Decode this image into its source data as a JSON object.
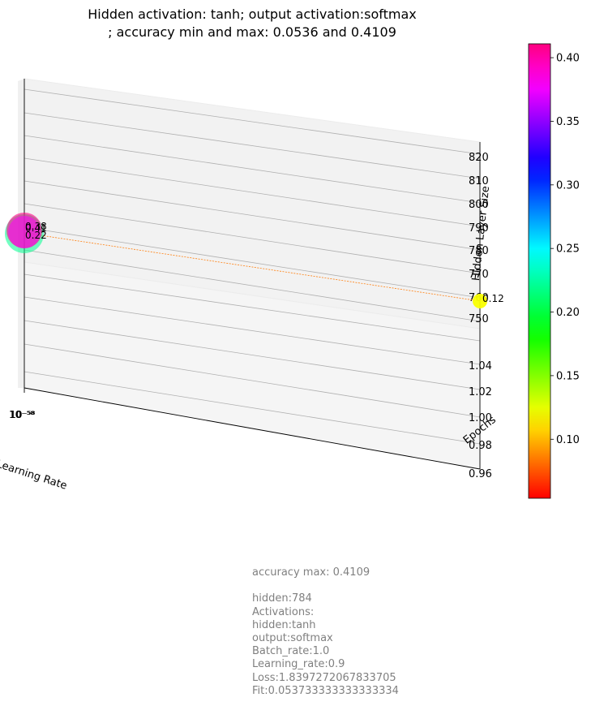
{
  "chart_data": {
    "type": "scatter",
    "title_line1": "Hidden activation: tanh; output activation:softmax",
    "title_line2": "; accuracy min and max: 0.0536 and 0.4109",
    "axes": {
      "x_label": "Learning Rate",
      "y_label": "Hidden Layer Size",
      "z_label": "Epochs",
      "x_tick_label": "10⁻⁵⁸",
      "hidden_ticks": [
        "820",
        "810",
        "800",
        "790",
        "780",
        "770",
        "760",
        "750"
      ],
      "epoch_ticks": [
        "1.04",
        "1.02",
        "1.00",
        "0.98",
        "0.96"
      ]
    },
    "colorbar": {
      "colormap": "gist_rainbow_r",
      "min": 0.0536,
      "max": 0.4109,
      "ticks": [
        "0.40",
        "0.35",
        "0.30",
        "0.25",
        "0.20",
        "0.15",
        "0.10"
      ],
      "tick_values": [
        0.4,
        0.35,
        0.3,
        0.25,
        0.2,
        0.15,
        0.1
      ]
    },
    "points": [
      {
        "label": "0.22",
        "accuracy": 0.22
      },
      {
        "label": "0.41",
        "accuracy": 0.41
      },
      {
        "label": "0.38",
        "accuracy": 0.38
      },
      {
        "label": "0.12",
        "accuracy": 0.12
      }
    ],
    "info_lines": [
      "accuracy max: 0.4109",
      "",
      "hidden:784",
      "Activations:",
      "hidden:tanh",
      "output:softmax",
      "Batch_rate:1.0",
      "Learning_rate:0.9",
      "Loss:1.8397272067833705",
      "Fit:0.053733333333333334"
    ]
  }
}
